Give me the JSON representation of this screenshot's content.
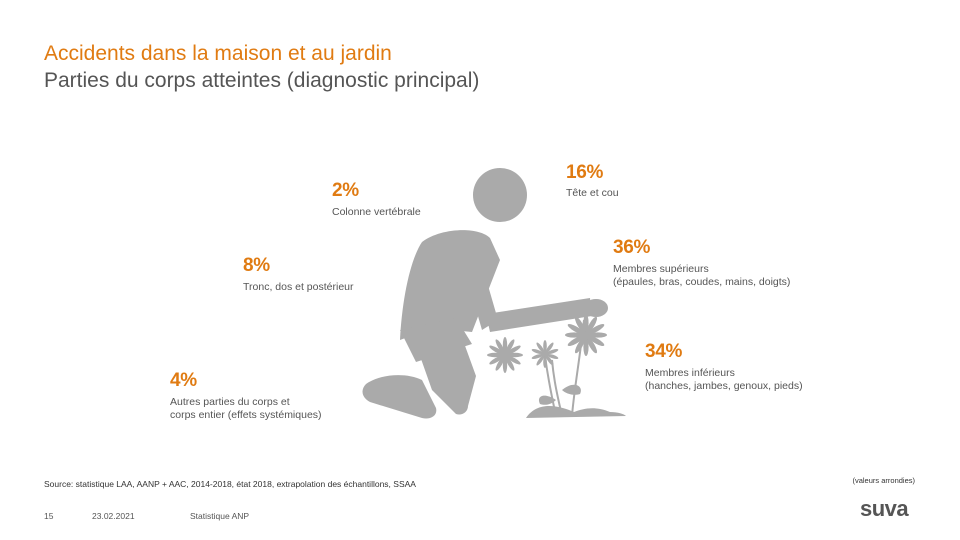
{
  "header": {
    "title_line1": "Accidents dans la maison et au jardin",
    "title_line2": "Parties du corps atteintes (diagnostic principal)"
  },
  "chart_data": {
    "type": "other",
    "segments": [
      {
        "percent": "16%",
        "label": "Tête et cou",
        "value": 16
      },
      {
        "percent": "36%",
        "label": "Membres supérieurs",
        "detail": "(épaules, bras, coudes, mains, doigts)",
        "value": 36
      },
      {
        "percent": "34%",
        "label": "Membres inférieurs",
        "detail": "(hanches, jambes, genoux, pieds)",
        "value": 34
      },
      {
        "percent": "2%",
        "label": "Colonne vertébrale",
        "value": 2
      },
      {
        "percent": "8%",
        "label": "Tronc, dos et postérieur",
        "value": 8
      },
      {
        "percent": "4%",
        "label": "Autres parties du corps et",
        "detail": "corps entier (effets systémiques)",
        "value": 4
      }
    ]
  },
  "notes": {
    "source": "Source: statistique LAA, AANP + AAC, 2014-2018, état 2018, extrapolation des échantillons, SSAA",
    "rounded": "(valeurs arrondies)"
  },
  "footer": {
    "page_number": "15",
    "date": "23.02.2021",
    "section": "Statistique ANP",
    "logo": "suva"
  },
  "colors": {
    "accent": "#e07b12",
    "figure": "#aaaaaa"
  }
}
